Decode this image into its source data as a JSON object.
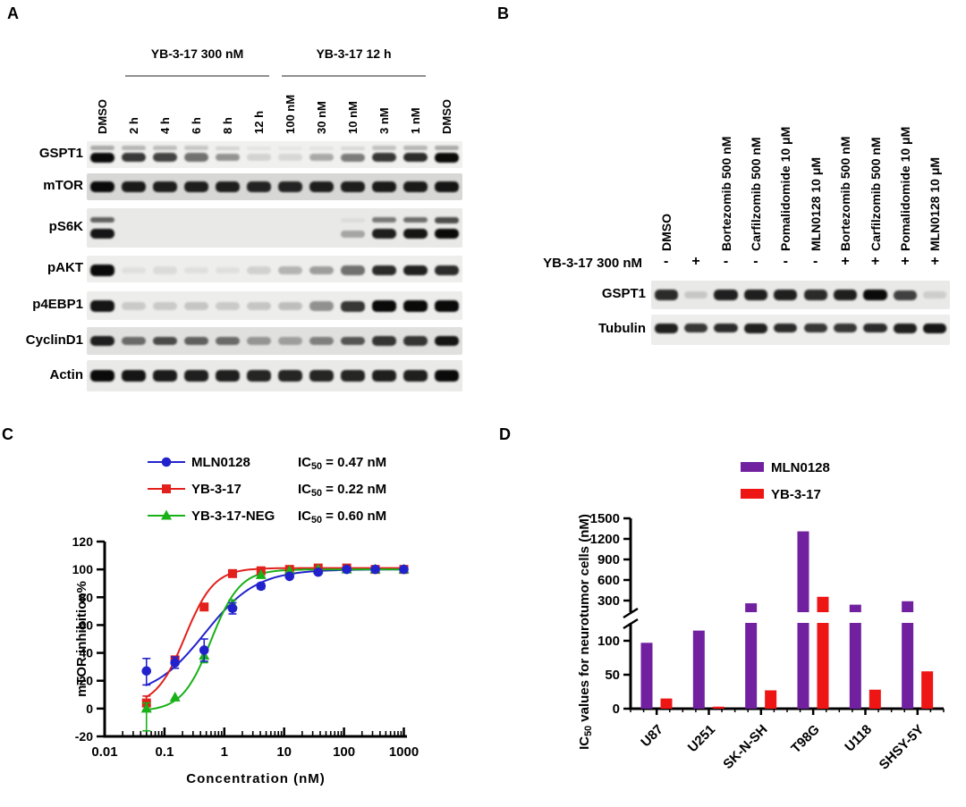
{
  "figure": {
    "panels": {
      "a": {
        "letter": "A",
        "group_headers": [
          {
            "label": "YB-3-17 300 nM",
            "start_lane": 1,
            "end_lane": 5
          },
          {
            "label": "YB-3-17 12 h",
            "start_lane": 6,
            "end_lane": 10
          }
        ],
        "lane_labels": [
          "DMSO",
          "2 h",
          "4 h",
          "6 h",
          "8 h",
          "12 h",
          "100 nM",
          "30 nM",
          "10 nM",
          "3 nM",
          "1 nM",
          "DMSO"
        ],
        "rows": [
          {
            "label": "GSPT1",
            "bg": "#F0F0EE",
            "bands": [
              {
                "y": 0.26,
                "h": 6,
                "i": [
                  0.3,
                  0.25,
                  0.22,
                  0.18,
                  0.12,
                  0.05,
                  0.04,
                  0.06,
                  0.1,
                  0.2,
                  0.25,
                  0.3
                ]
              },
              {
                "y": 0.6,
                "h": 10,
                "i": [
                  1,
                  0.8,
                  0.75,
                  0.55,
                  0.4,
                  0.12,
                  0.1,
                  0.3,
                  0.5,
                  0.8,
                  0.85,
                  1
                ]
              }
            ]
          },
          {
            "label": "mTOR",
            "bg": "#D7D7D5",
            "bands": [
              {
                "y": 0.5,
                "h": 11,
                "i": [
                  1,
                  0.92,
                  0.9,
                  0.9,
                  0.9,
                  0.88,
                  0.88,
                  0.9,
                  0.9,
                  0.92,
                  0.92,
                  0.95
                ]
              }
            ]
          },
          {
            "label": "pS6K",
            "bg": "#E9E9E7",
            "bands": [
              {
                "y": 0.3,
                "h": 7,
                "i": [
                  0.6,
                  0,
                  0,
                  0,
                  0,
                  0,
                  0,
                  0,
                  0.05,
                  0.5,
                  0.55,
                  0.7
                ]
              },
              {
                "y": 0.65,
                "h": 10,
                "i": [
                  0.95,
                  0,
                  0,
                  0,
                  0,
                  0,
                  0,
                  0,
                  0.3,
                  0.9,
                  0.95,
                  1
                ]
              }
            ]
          },
          {
            "label": "pAKT",
            "bg": "#EEEEEC",
            "bands": [
              {
                "y": 0.55,
                "h": 11,
                "i": [
                  1,
                  0.06,
                  0.08,
                  0.06,
                  0.06,
                  0.12,
                  0.25,
                  0.35,
                  0.55,
                  0.85,
                  0.9,
                  0.85
                ]
              }
            ]
          },
          {
            "label": "p4EBP1",
            "bg": "#EDEDEB",
            "bands": [
              {
                "y": 0.52,
                "h": 12,
                "i": [
                  0.95,
                  0.15,
                  0.15,
                  0.17,
                  0.15,
                  0.17,
                  0.2,
                  0.4,
                  0.8,
                  1,
                  1,
                  1
                ]
              }
            ]
          },
          {
            "label": "CyclinD1",
            "bg": "#E0E0DE",
            "bands": [
              {
                "y": 0.5,
                "h": 10,
                "i": [
                  0.9,
                  0.55,
                  0.7,
                  0.6,
                  0.55,
                  0.35,
                  0.3,
                  0.45,
                  0.65,
                  0.8,
                  0.8,
                  0.95
                ]
              }
            ]
          },
          {
            "label": "Actin",
            "bg": "#EAEAE8",
            "bands": [
              {
                "y": 0.5,
                "h": 12,
                "i": [
                  1,
                  0.95,
                  0.92,
                  0.9,
                  0.9,
                  0.88,
                  0.88,
                  0.88,
                  0.88,
                  0.9,
                  0.9,
                  1
                ]
              }
            ]
          }
        ]
      },
      "b": {
        "letter": "B",
        "lane_labels": [
          "DMSO",
          "",
          "Bortezomib 500 nM",
          "Carfilzomib 500 nM",
          "Pomalidomide 10 μM",
          "MLN0128 10 μM",
          "Bortezomib 500 nM",
          "Carfilzomib 500 nM",
          "Pomalidomide 10 μM",
          "MLN0128 10 μM"
        ],
        "treatment_row": {
          "label": "YB-3-17 300 nM",
          "signs": [
            "-",
            "+",
            "-",
            "-",
            "-",
            "-",
            "+",
            "+",
            "+",
            "+"
          ]
        },
        "rows": [
          {
            "label": "GSPT1",
            "bg": "#E9E9E7",
            "bands": [
              {
                "y": 0.5,
                "h": 11,
                "i": [
                  0.85,
                  0.15,
                  0.9,
                  0.9,
                  0.9,
                  0.85,
                  0.9,
                  1,
                  0.75,
                  0.12
                ]
              }
            ]
          },
          {
            "label": "Tubulin",
            "bg": "#EDEDEB",
            "bands": [
              {
                "y": 0.45,
                "h": 10,
                "i": [
                  0.9,
                  0.8,
                  0.85,
                  0.9,
                  0.85,
                  0.8,
                  0.8,
                  0.85,
                  0.9,
                  0.95
                ]
              }
            ]
          }
        ]
      },
      "c": {
        "letter": "C"
      },
      "d": {
        "letter": "D"
      }
    }
  },
  "chart_data": [
    {
      "panel": "C",
      "type": "line",
      "xlabel": "Concentration (nM)",
      "ylabel": "mTOR inhibition%",
      "xscale": "log",
      "xlim": [
        0.01,
        1000
      ],
      "ylim": [
        -20,
        120
      ],
      "xticks": [
        0.01,
        0.1,
        1,
        10,
        100,
        1000
      ],
      "xtick_labels": [
        "0.01",
        "0.1",
        "1",
        "10",
        "100",
        "1000"
      ],
      "yticks": [
        -20,
        0,
        20,
        40,
        60,
        80,
        100,
        120
      ],
      "grid": false,
      "legend_position": "top",
      "x": [
        0.05,
        0.15,
        0.46,
        1.37,
        4.1,
        12.3,
        37,
        111,
        333,
        1000
      ],
      "series": [
        {
          "name": "MLN0128",
          "color": "#2222CC",
          "marker": "circle",
          "ic50_label": "IC50 = 0.47 nM",
          "y": [
            27,
            33,
            42,
            72,
            88,
            95,
            98,
            100,
            100,
            100
          ],
          "yerr_lo": [
            10,
            4,
            8,
            4,
            2,
            0,
            0,
            0,
            0,
            0
          ],
          "yerr_hi": [
            9,
            4,
            8,
            4,
            2,
            0,
            0,
            0,
            0,
            0
          ],
          "fit": {
            "bottom": 8,
            "top": 100,
            "ic50": 0.47,
            "hill": 1.0
          }
        },
        {
          "name": "YB-3-17",
          "color": "#E2201C",
          "marker": "square",
          "ic50_label": "IC50 = 0.22 nM",
          "y": [
            4,
            35,
            73,
            97,
            99,
            100,
            101,
            101,
            100,
            100
          ],
          "yerr_lo": [
            5,
            0,
            0,
            0,
            0,
            0,
            0,
            0,
            0,
            0
          ],
          "yerr_hi": [
            5,
            0,
            0,
            0,
            0,
            0,
            0,
            0,
            0,
            0
          ],
          "fit": {
            "bottom": 2,
            "top": 101,
            "ic50": 0.22,
            "hill": 1.8
          }
        },
        {
          "name": "YB-3-17-NEG",
          "color": "#18B118",
          "marker": "triangle",
          "ic50_label": "IC50 = 0.60 nM",
          "y": [
            0,
            8,
            38,
            75,
            96,
            99,
            100,
            100,
            100,
            100
          ],
          "yerr_lo": [
            16,
            0,
            5,
            3,
            0,
            0,
            0,
            0,
            0,
            0
          ],
          "yerr_hi": [
            4,
            0,
            5,
            3,
            0,
            0,
            0,
            0,
            0,
            0
          ],
          "fit": {
            "bottom": -2,
            "top": 100,
            "ic50": 0.6,
            "hill": 1.8
          }
        }
      ]
    },
    {
      "panel": "D",
      "type": "bar",
      "ylabel": "IC50 values for neurotumor cells (nM)",
      "categories": [
        "U87",
        "U251",
        "SK-N-SH",
        "T98G",
        "U118",
        "SHSY-5Y"
      ],
      "series": [
        {
          "name": "MLN0128",
          "color": "#7121A0",
          "values": [
            97,
            115,
            260,
            1310,
            240,
            290
          ]
        },
        {
          "name": "YB-3-17",
          "color": "#EE1515",
          "values": [
            15,
            3,
            27,
            355,
            28,
            55
          ]
        }
      ],
      "axis_break": {
        "lower_range": [
          0,
          126
        ],
        "upper_range": [
          130,
          1500
        ],
        "lower_ticks": [
          0,
          50,
          100
        ],
        "upper_ticks": [
          300,
          600,
          900,
          1200,
          1500
        ]
      },
      "grid": false,
      "legend_position": "top-right"
    }
  ]
}
